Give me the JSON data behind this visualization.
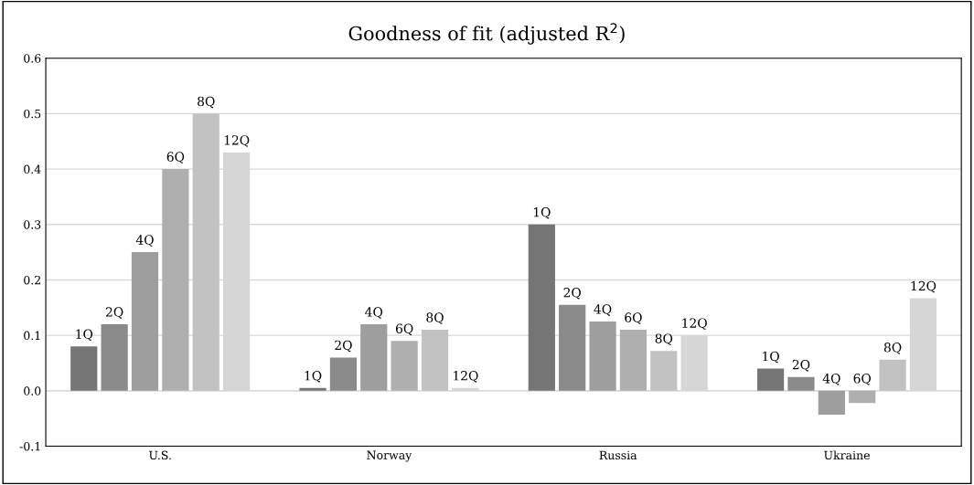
{
  "chart_data": {
    "type": "bar",
    "title": "Goodness of fit (adjusted R$^{2}$)",
    "categories": [
      "U.S.",
      "Norway",
      "Russia",
      "Ukraine"
    ],
    "series": [
      {
        "name": "1Q",
        "color": "#757575",
        "values": [
          0.08,
          0.005,
          0.3,
          0.04
        ]
      },
      {
        "name": "2Q",
        "color": "#8a8a8a",
        "values": [
          0.12,
          0.06,
          0.155,
          0.025
        ]
      },
      {
        "name": "4Q",
        "color": "#9e9e9e",
        "values": [
          0.25,
          0.12,
          0.125,
          -0.043
        ]
      },
      {
        "name": "6Q",
        "color": "#afafaf",
        "values": [
          0.4,
          0.09,
          0.11,
          -0.022
        ]
      },
      {
        "name": "8Q",
        "color": "#c2c2c2",
        "values": [
          0.5,
          0.11,
          0.072,
          0.056
        ]
      },
      {
        "name": "12Q",
        "color": "#d6d6d6",
        "values": [
          0.43,
          0.005,
          0.1,
          0.167
        ]
      }
    ],
    "ylim": [
      -0.1,
      0.6
    ],
    "yticks": [
      {
        "value": -0.1,
        "label": "-0.1"
      },
      {
        "value": 0,
        "label": "0.0"
      },
      0.1,
      0.2,
      0.3,
      0.4,
      0.5,
      0.6
    ],
    "grid": "y",
    "legend": false
  }
}
